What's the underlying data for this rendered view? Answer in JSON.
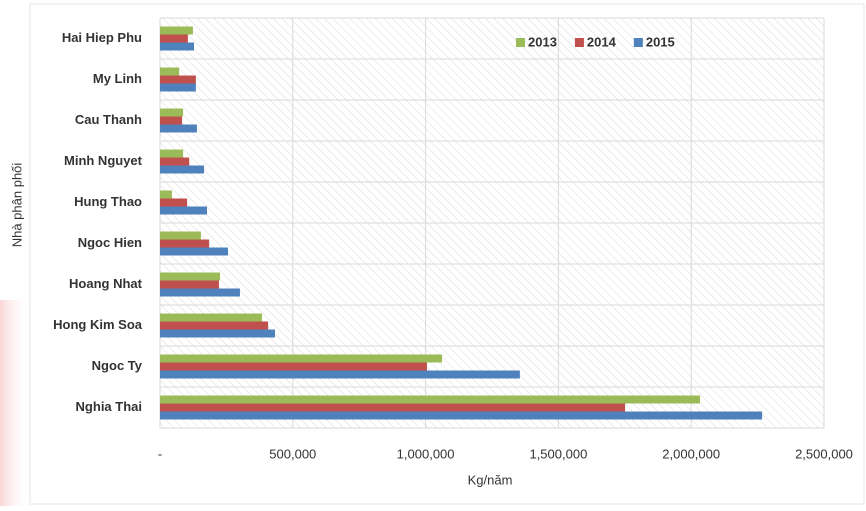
{
  "chart_data": {
    "type": "bar",
    "orientation": "horizontal",
    "x_label": "Kg/năm",
    "y_label": "Nhà phân phối",
    "categories": [
      "Hai Hiep Phu",
      "My Linh",
      "Cau Thanh",
      "Minh Nguyet",
      "Hung Thao",
      "Ngoc Hien",
      "Hoang Nhat",
      "Hong Kim Soa",
      "Ngoc Ty",
      "Nghia Thai"
    ],
    "series": [
      {
        "name": "2013",
        "color": "#9bbb59",
        "values": [
          124000,
          72000,
          87000,
          87000,
          45000,
          154000,
          226000,
          384000,
          1062000,
          2033000
        ]
      },
      {
        "name": "2014",
        "color": "#c0504d",
        "values": [
          105000,
          135000,
          83000,
          110000,
          102000,
          185000,
          222000,
          407000,
          1005000,
          1751000
        ]
      },
      {
        "name": "2015",
        "color": "#4f81bd",
        "values": [
          128000,
          135000,
          139000,
          166000,
          177000,
          256000,
          301000,
          433000,
          1355000,
          2267000
        ]
      }
    ],
    "xlim": [
      0,
      2500000
    ],
    "xticks": [
      {
        "value": 0,
        "label": "-"
      },
      {
        "value": 500000,
        "label": "500,000"
      },
      {
        "value": 1000000,
        "label": "1,000,000"
      },
      {
        "value": 1500000,
        "label": "1,500,000"
      },
      {
        "value": 2000000,
        "label": "2,000,000"
      },
      {
        "value": 2500000,
        "label": "2,500,000"
      }
    ],
    "grid": true,
    "legend": "top-right"
  }
}
